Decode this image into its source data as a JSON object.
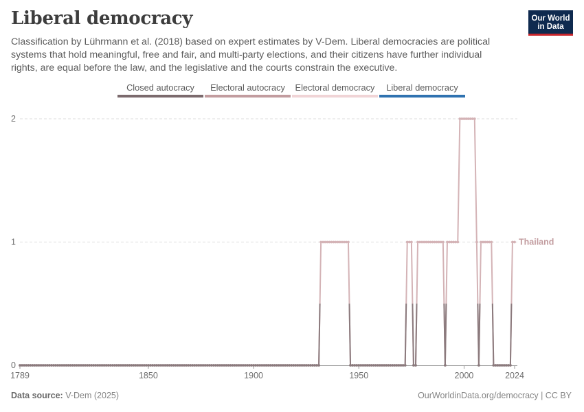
{
  "header": {
    "title": "Liberal democracy",
    "subtitle": "Classification by Lührmann et al. (2018) based on expert estimates by V-Dem. Liberal democracies are political systems that hold meaningful, free and fair, and multi-party elections, and their citizens have further individual rights, are equal before the law, and the legislative and the courts constrain the executive."
  },
  "logo": {
    "line1": "Our World",
    "line2": "in Data"
  },
  "legend": [
    {
      "label": "Closed autocracy",
      "color": "#7b6a6d"
    },
    {
      "label": "Electoral autocracy",
      "color": "#c29c9f"
    },
    {
      "label": "Electoral democracy",
      "color": "#f0d4d6"
    },
    {
      "label": "Liberal democracy",
      "color": "#2f72b0"
    }
  ],
  "footer": {
    "source_label": "Data source:",
    "source_value": "V-Dem (2025)",
    "right": "OurWorldinData.org/democracy | CC BY"
  },
  "chart_data": {
    "type": "line",
    "title": "Liberal democracy",
    "xlabel": "",
    "ylabel": "",
    "xlim": [
      1789,
      2024
    ],
    "ylim": [
      0,
      2
    ],
    "x_ticks": [
      "1789",
      "1850",
      "1900",
      "1950",
      "2000",
      "2024"
    ],
    "y_ticks": [
      "0",
      "1",
      "2"
    ],
    "grid": "horizontal dashed",
    "series": [
      {
        "name": "Thailand",
        "line_color": "#d4b3b6",
        "low_color": "#8b7a7d",
        "segments": [
          {
            "start": 1789,
            "end": 1931,
            "value": 0
          },
          {
            "start": 1932,
            "end": 1945,
            "value": 1
          },
          {
            "start": 1946,
            "end": 1972,
            "value": 0
          },
          {
            "start": 1973,
            "end": 1975,
            "value": 1
          },
          {
            "start": 1976,
            "end": 1977,
            "value": 0
          },
          {
            "start": 1978,
            "end": 1990,
            "value": 1
          },
          {
            "start": 1991,
            "end": 1991,
            "value": 0
          },
          {
            "start": 1992,
            "end": 1997,
            "value": 1
          },
          {
            "start": 1998,
            "end": 2005,
            "value": 2
          },
          {
            "start": 2006,
            "end": 2006,
            "value": 1
          },
          {
            "start": 2007,
            "end": 2007,
            "value": 0
          },
          {
            "start": 2008,
            "end": 2013,
            "value": 1
          },
          {
            "start": 2014,
            "end": 2022,
            "value": 0
          },
          {
            "start": 2023,
            "end": 2024,
            "value": 1
          }
        ]
      }
    ]
  }
}
